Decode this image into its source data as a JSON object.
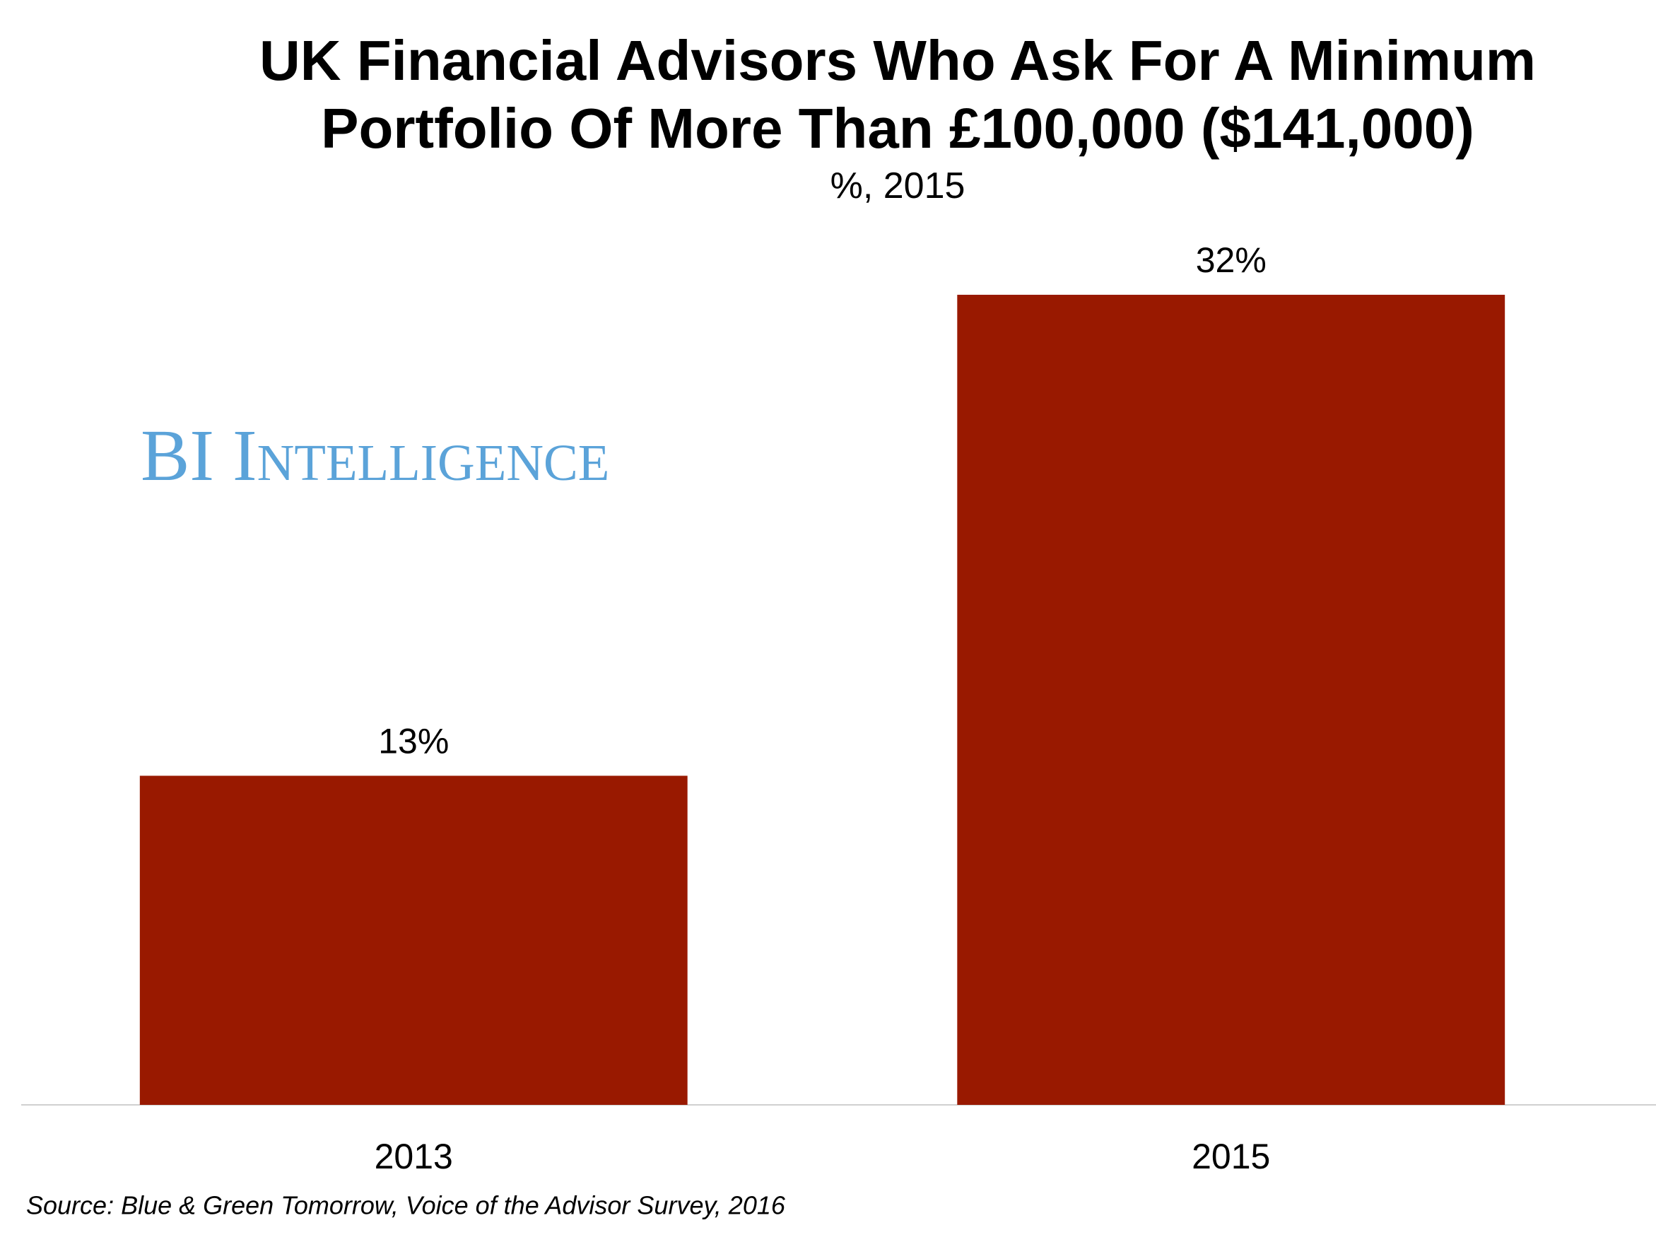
{
  "chart_data": {
    "type": "bar",
    "title": "UK Financial Advisors Who Ask For A Minimum Portfolio Of More Than £100,000 ($141,000)",
    "subtitle": "%, 2015",
    "categories": [
      "2013",
      "2015"
    ],
    "values": [
      13,
      32
    ],
    "value_labels": [
      "13%",
      "32%"
    ],
    "color": "#991900",
    "watermark": "BI Intelligence",
    "source": "Source: Blue & Green Tomorrow, Voice of the Advisor Survey, 2016"
  }
}
